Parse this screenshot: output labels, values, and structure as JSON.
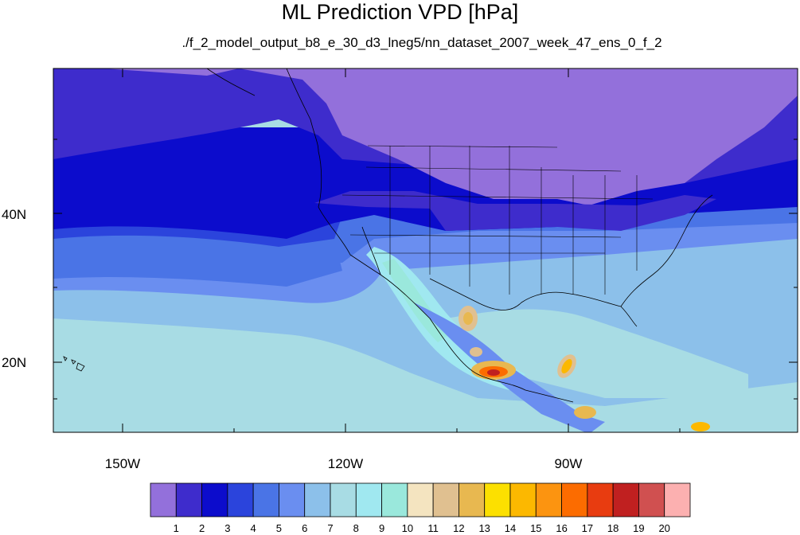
{
  "title": "ML Prediction VPD [hPa]",
  "subtitle": "./f_2_model_output_b8_e_30_d3_lneg5/nn_dataset_2007_week_47_ens_0_f_2",
  "lat_labels": [
    "40N",
    "20N"
  ],
  "lon_labels": [
    "150W",
    "120W",
    "90W"
  ],
  "colorbar": {
    "ticks": [
      "1",
      "2",
      "3",
      "4",
      "5",
      "6",
      "7",
      "8",
      "9",
      "10",
      "11",
      "12",
      "13",
      "14",
      "15",
      "16",
      "17",
      "18",
      "19",
      "20"
    ],
    "colors": [
      "#9370db",
      "#3e2ccc",
      "#0c0ccc",
      "#2b44dc",
      "#4a74e6",
      "#6a8ef0",
      "#8cc0ea",
      "#a8dce4",
      "#a0e8f0",
      "#9ae8dc",
      "#f4e4c0",
      "#e0c090",
      "#e8b850",
      "#fce000",
      "#fcb800",
      "#fc9410",
      "#fc6c00",
      "#e83c10",
      "#c02020",
      "#d05050",
      "#fcb0b0"
    ]
  },
  "palette": {
    "land_lines": "#000000",
    "ocean_south": "#a8dce4",
    "north_violet": "#9370db"
  }
}
